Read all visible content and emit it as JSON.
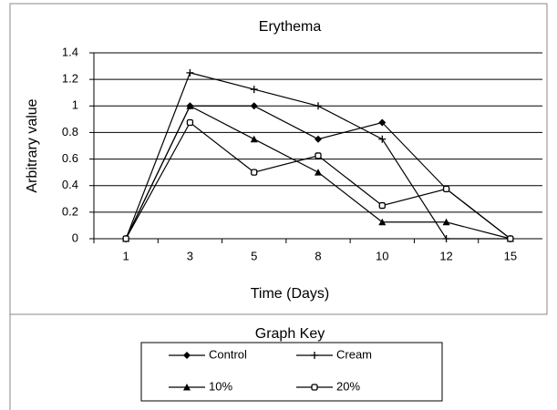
{
  "chart_data": {
    "type": "line",
    "title": "Erythema",
    "x_label": "Time (Days)",
    "y_label": "Arbitrary value",
    "categories": [
      "1",
      "3",
      "5",
      "8",
      "10",
      "12",
      "15"
    ],
    "series": [
      {
        "name": "Control",
        "color": "#000000",
        "marker": "diamond",
        "values": [
          0,
          1,
          1,
          0.75,
          0.875,
          0.375,
          0
        ]
      },
      {
        "name": "Cream",
        "color": "#000000",
        "marker": "plus",
        "values": [
          0,
          1.25,
          1.125,
          1,
          0.75,
          0,
          0
        ]
      },
      {
        "name": "10%",
        "color": "#000000",
        "marker": "triangle",
        "values": [
          0,
          1,
          0.75,
          0.5,
          0.125,
          0.125,
          0
        ]
      },
      {
        "name": "20%",
        "color": "#000000",
        "marker": "open",
        "values": [
          0,
          0.875,
          0.5,
          0.625,
          0.25,
          0.375,
          0
        ]
      }
    ],
    "ylim": [
      0,
      1.4
    ],
    "yticks": [
      0,
      0.2,
      0.4,
      0.6,
      0.8,
      1,
      1.2,
      1.4
    ],
    "grid": true,
    "legend_title": "Graph Key"
  }
}
